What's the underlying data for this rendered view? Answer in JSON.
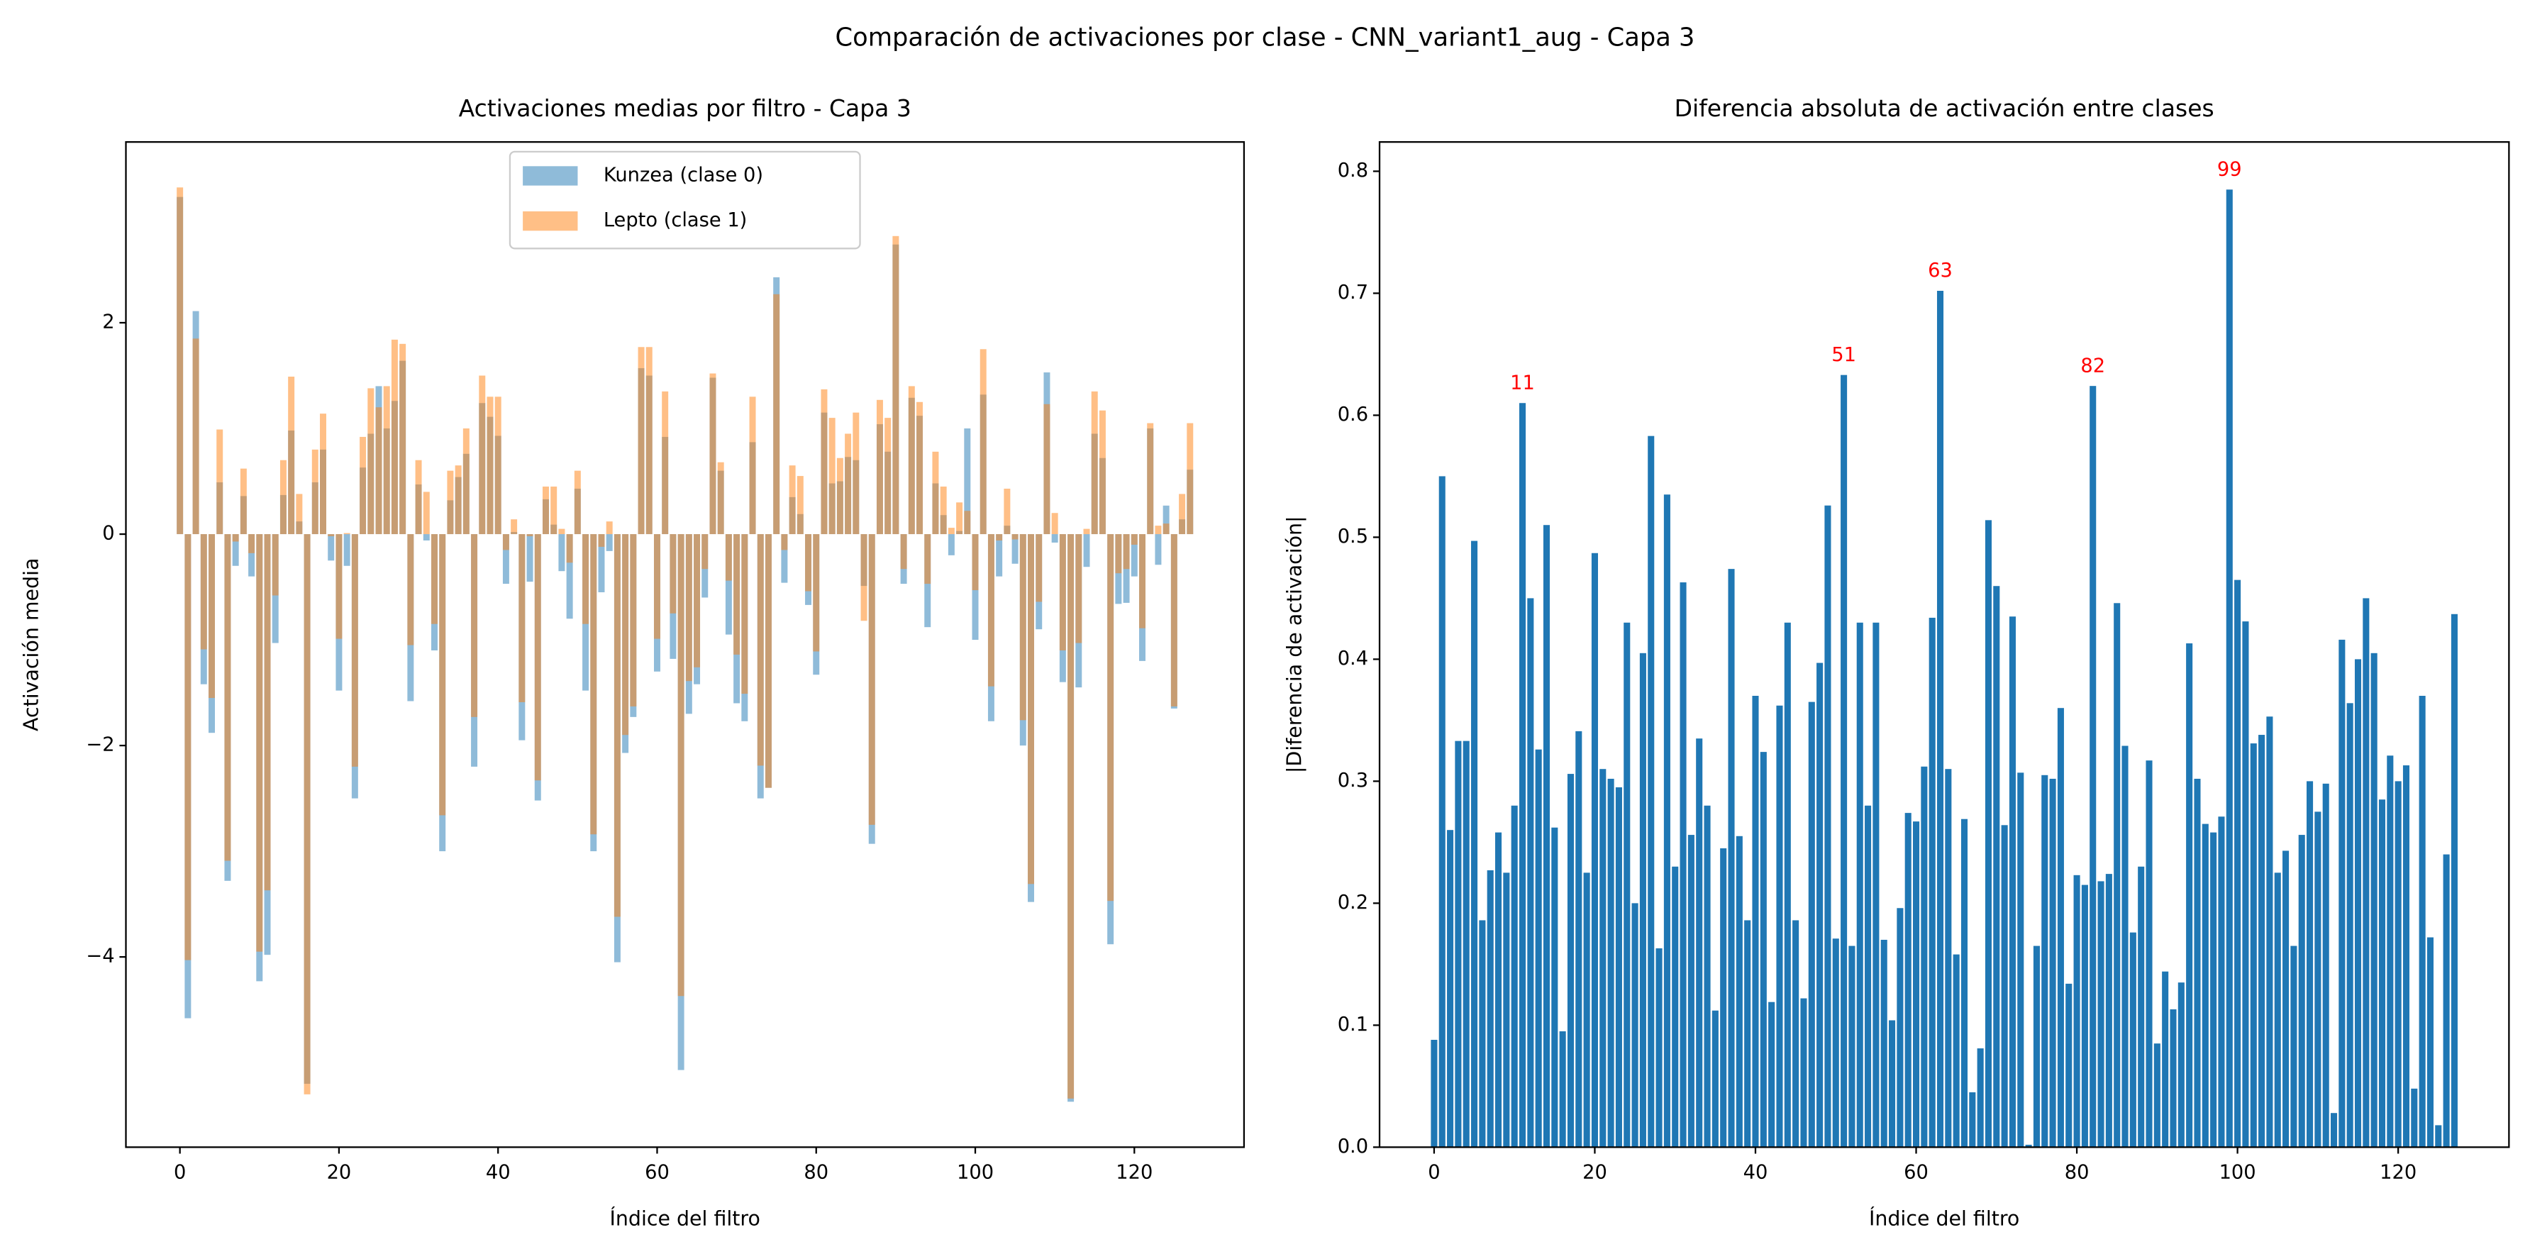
{
  "title": "Comparación de activaciones por clase - CNN_variant1_aug - Capa 3",
  "chart_data": [
    {
      "type": "bar",
      "title": "Activaciones medias por filtro - Capa 3",
      "xlabel": "Índice del filtro",
      "ylabel": "Activación media",
      "xlim": [
        -6.79,
        133.79
      ],
      "xticks": [
        0,
        20,
        40,
        60,
        80,
        100,
        120
      ],
      "ylim": [
        -5.8,
        3.71
      ],
      "yticks": [
        {
          "value": -4,
          "label": "−4"
        },
        {
          "value": -2,
          "label": "−2"
        },
        0,
        2
      ],
      "legend": "upper center",
      "alpha": 0.5,
      "series": [
        {
          "name": "Kunzea (clase 0)",
          "color": "#1f77b4",
          "values": [
            3.19,
            -4.58,
            2.11,
            -1.42,
            -1.88,
            0.49,
            -3.28,
            -0.3,
            0.36,
            -0.4,
            -4.23,
            -3.98,
            -1.03,
            0.37,
            0.98,
            0.12,
            -5.2,
            0.49,
            0.8,
            -0.25,
            -1.48,
            -0.3,
            -2.5,
            0.63,
            0.95,
            1.4,
            1.0,
            1.26,
            1.64,
            -1.58,
            0.47,
            -0.06,
            -1.1,
            -3.0,
            0.32,
            0.54,
            0.76,
            -2.2,
            1.24,
            1.11,
            0.93,
            -0.47,
            0.02,
            -1.95,
            -0.45,
            -2.52,
            0.33,
            0.09,
            -0.35,
            -0.8,
            0.43,
            -1.48,
            -3.0,
            -0.55,
            -0.16,
            -4.05,
            -2.07,
            -1.73,
            1.57,
            1.5,
            -1.3,
            0.92,
            -1.18,
            -5.07,
            -1.7,
            -1.42,
            -0.6,
            1.48,
            0.6,
            -0.95,
            -1.6,
            -1.77,
            0.87,
            -2.5,
            -2.4,
            2.43,
            -0.46,
            0.35,
            0.19,
            -0.67,
            -1.33,
            1.15,
            0.48,
            0.5,
            0.73,
            0.7,
            -0.49,
            -2.93,
            1.04,
            0.78,
            2.74,
            -0.47,
            1.29,
            1.12,
            -0.88,
            0.48,
            0.18,
            -0.2,
            0.03,
            1.0,
            -1.0,
            1.32,
            -1.77,
            -0.4,
            0.08,
            -0.28,
            -2.0,
            -3.48,
            -0.9,
            1.53,
            -0.08,
            -1.4,
            -5.37,
            -1.45,
            -0.31,
            0.95,
            0.72,
            -3.88,
            -0.66,
            -0.65,
            -0.4,
            -1.2,
            1.0,
            -0.29,
            0.27,
            -1.65,
            0.14,
            0.61
          ]
        },
        {
          "name": "Lepto (clase 1)",
          "color": "#ff7f0e",
          "values": [
            3.28,
            -4.03,
            1.85,
            -1.09,
            -1.55,
            0.99,
            -3.09,
            -0.07,
            0.62,
            -0.18,
            -3.95,
            -3.37,
            -0.58,
            0.7,
            1.49,
            0.38,
            -5.3,
            0.8,
            1.14,
            -0.02,
            -0.99,
            0.01,
            -2.2,
            0.92,
            1.38,
            1.2,
            1.4,
            1.84,
            1.8,
            -1.05,
            0.7,
            0.4,
            -0.85,
            -2.66,
            0.6,
            0.65,
            1.0,
            -1.73,
            1.5,
            1.3,
            1.3,
            -0.15,
            0.14,
            -1.59,
            -0.02,
            -2.33,
            0.45,
            0.45,
            0.05,
            -0.27,
            0.6,
            -0.85,
            -2.84,
            -0.12,
            0.12,
            -3.62,
            -1.9,
            -1.63,
            1.77,
            1.77,
            -0.99,
            1.35,
            -0.75,
            -4.37,
            -1.39,
            -1.26,
            -0.33,
            1.52,
            0.68,
            -0.44,
            -1.14,
            -1.51,
            1.3,
            -2.19,
            -2.4,
            2.27,
            -0.15,
            0.65,
            0.55,
            -0.54,
            -1.11,
            1.37,
            1.1,
            0.72,
            0.95,
            1.15,
            -0.82,
            -2.75,
            1.27,
            1.1,
            2.82,
            -0.33,
            1.4,
            1.25,
            -0.47,
            0.78,
            0.45,
            0.06,
            0.3,
            0.22,
            -0.53,
            1.75,
            -1.44,
            -0.06,
            0.43,
            -0.05,
            -1.76,
            -3.31,
            -0.64,
            1.23,
            0.2,
            -1.1,
            -5.34,
            -1.03,
            0.05,
            1.35,
            1.17,
            -3.47,
            -0.37,
            -0.33,
            -0.1,
            -0.89,
            1.05,
            0.08,
            0.1,
            -1.63,
            0.38,
            1.05
          ]
        }
      ]
    },
    {
      "type": "bar",
      "title": "Diferencia absoluta de activación entre clases",
      "xlabel": "Índice del filtro",
      "ylabel": "|Diferencia de activación|",
      "xlim": [
        -6.79,
        133.79
      ],
      "xticks": [
        0,
        20,
        40,
        60,
        80,
        100,
        120
      ],
      "ylim": [
        0,
        0.824
      ],
      "yticks": [
        {
          "value": 0,
          "label": "0.0"
        },
        0.1,
        0.2,
        0.3,
        0.4,
        0.5,
        0.6,
        0.7,
        0.8
      ],
      "alpha": 1,
      "annotation_color": "#ff0000",
      "annotations": [
        11,
        51,
        63,
        82,
        99
      ],
      "series": [
        {
          "color": "#1f77b4",
          "values": [
            0.088,
            0.55,
            0.26,
            0.333,
            0.333,
            0.497,
            0.186,
            0.227,
            0.258,
            0.225,
            0.28,
            0.61,
            0.45,
            0.326,
            0.51,
            0.262,
            0.095,
            0.306,
            0.341,
            0.225,
            0.487,
            0.31,
            0.302,
            0.295,
            0.43,
            0.2,
            0.405,
            0.583,
            0.163,
            0.535,
            0.23,
            0.463,
            0.256,
            0.335,
            0.28,
            0.112,
            0.245,
            0.474,
            0.255,
            0.186,
            0.37,
            0.324,
            0.119,
            0.362,
            0.43,
            0.186,
            0.122,
            0.365,
            0.397,
            0.526,
            0.171,
            0.633,
            0.165,
            0.43,
            0.28,
            0.43,
            0.17,
            0.104,
            0.196,
            0.274,
            0.267,
            0.312,
            0.434,
            0.702,
            0.31,
            0.158,
            0.269,
            0.045,
            0.081,
            0.514,
            0.46,
            0.264,
            0.435,
            0.307,
            0.002,
            0.165,
            0.305,
            0.302,
            0.36,
            0.134,
            0.223,
            0.215,
            0.624,
            0.218,
            0.224,
            0.446,
            0.329,
            0.176,
            0.23,
            0.317,
            0.085,
            0.144,
            0.113,
            0.135,
            0.413,
            0.302,
            0.265,
            0.258,
            0.271,
            0.785,
            0.465,
            0.431,
            0.331,
            0.338,
            0.353,
            0.225,
            0.243,
            0.165,
            0.256,
            0.3,
            0.275,
            0.298,
            0.028,
            0.416,
            0.364,
            0.4,
            0.45,
            0.405,
            0.285,
            0.321,
            0.3,
            0.313,
            0.048,
            0.37,
            0.172,
            0.018,
            0.24,
            0.437
          ]
        }
      ]
    }
  ]
}
